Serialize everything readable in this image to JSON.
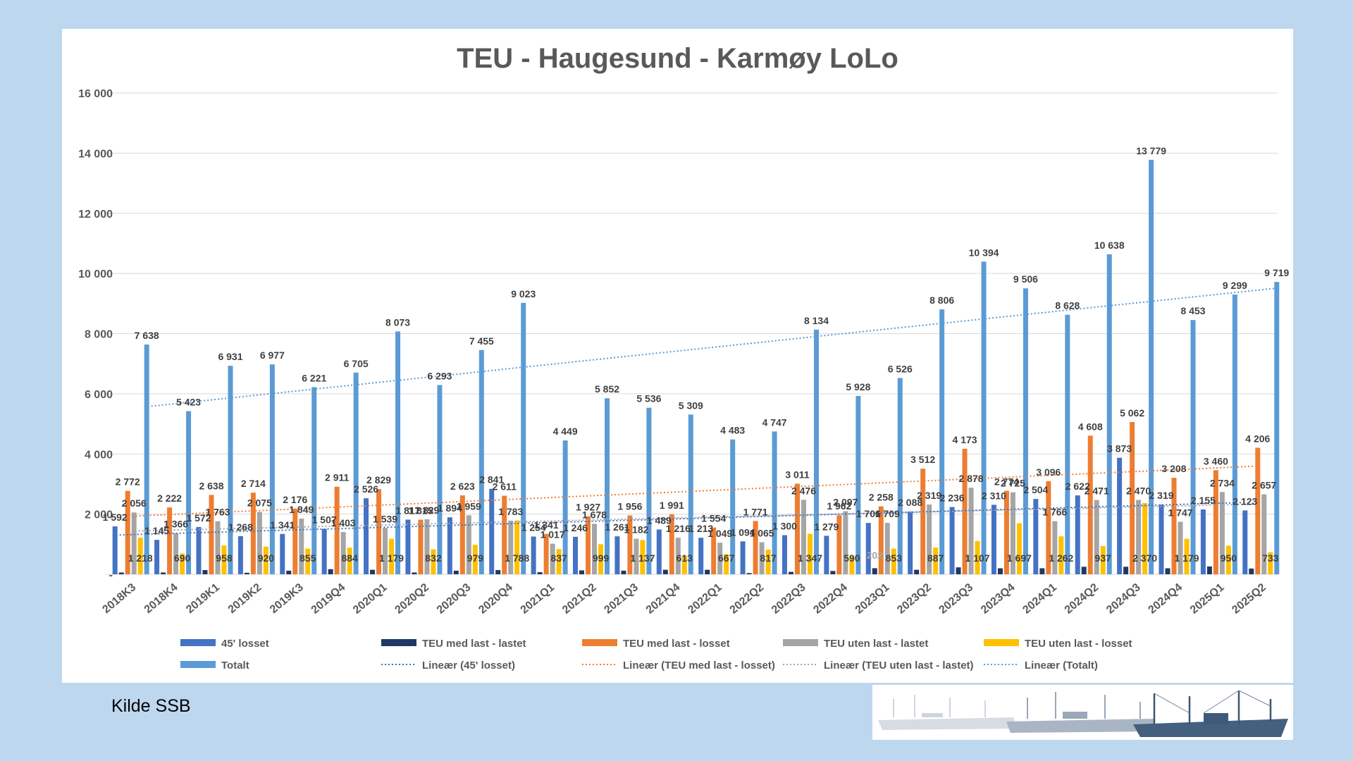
{
  "source": "Kilde SSB",
  "colors": {
    "background": "#bdd7ee",
    "panel": "#ffffff",
    "s45": "#4472c4",
    "teu_med_lastet": "#203864",
    "teu_med_losset": "#ed7d31",
    "teu_uten_lastet": "#a5a5a5",
    "teu_uten_losset": "#ffc000",
    "totalt": "#5b9bd5"
  },
  "chart_data": {
    "type": "bar",
    "title": "TEU - Haugesund - Karmøy LoLo",
    "ylim": [
      0,
      16000
    ],
    "y_ticks": [
      "-",
      "2 000",
      "4 000",
      "6 000",
      "8 000",
      "10 000",
      "12 000",
      "14 000",
      "16 000"
    ],
    "grid": true,
    "legend_position": "bottom",
    "categories": [
      "2018K3",
      "2018K4",
      "2019K1",
      "2019K2",
      "2019K3",
      "2019Q4",
      "2020Q1",
      "2020Q2",
      "2020Q3",
      "2020Q4",
      "2021Q1",
      "2021Q2",
      "2021Q3",
      "2021Q4",
      "2022Q1",
      "2022Q2",
      "2022Q3",
      "2022Q4",
      "2023Q1",
      "2023Q2",
      "2023Q3",
      "2023Q4",
      "2024Q1",
      "2024Q2",
      "2024Q3",
      "2024Q4",
      "2025Q1",
      "2025Q2"
    ],
    "series": [
      {
        "name": "45' losset",
        "color": "#4472c4",
        "values": [
          1592,
          1145,
          1572,
          1268,
          1341,
          1507,
          2526,
          1817,
          1894,
          2841,
          1254,
          1246,
          1261,
          1489,
          1213,
          1094,
          1300,
          1279,
          1706,
          2088,
          2236,
          2310,
          2504,
          2622,
          3873,
          2319,
          2155,
          2123
        ]
      },
      {
        "name": "TEU med last - lastet",
        "color": "#203864",
        "values": [
          60,
          60,
          140,
          50,
          120,
          170,
          150,
          60,
          120,
          140,
          70,
          130,
          120,
          150,
          150,
          40,
          80,
          110,
          202,
          150,
          230,
          200,
          200,
          250,
          250,
          200,
          260,
          190
        ]
      },
      {
        "name": "TEU med last - losset",
        "color": "#ed7d31",
        "values": [
          2772,
          2222,
          2638,
          2714,
          2176,
          2911,
          2829,
          1815,
          2623,
          2611,
          1341,
          1927,
          1956,
          1991,
          1554,
          1771,
          3011,
          1962,
          2258,
          3512,
          4173,
          2774,
          3096,
          4608,
          5062,
          3208,
          3460,
          4206
        ]
      },
      {
        "name": "TEU uten last - lastet",
        "color": "#a5a5a5",
        "values": [
          2056,
          1366,
          1763,
          2075,
          1849,
          1403,
          1539,
          1829,
          1959,
          1783,
          1017,
          1678,
          1182,
          1216,
          1049,
          1065,
          2476,
          2097,
          1709,
          2319,
          2878,
          2725,
          1766,
          2471,
          2470,
          1747,
          2734,
          2657
        ]
      },
      {
        "name": "TEU uten last - losset",
        "color": "#ffc000",
        "values": [
          1218,
          690,
          958,
          920,
          855,
          884,
          1179,
          832,
          979,
          1788,
          837,
          999,
          1137,
          613,
          667,
          817,
          1347,
          590,
          853,
          887,
          1107,
          1697,
          1262,
          937,
          2370,
          1179,
          950,
          733
        ]
      },
      {
        "name": "Totalt",
        "color": "#5b9bd5",
        "values": [
          7638,
          5423,
          6931,
          6977,
          6221,
          6705,
          8073,
          6293,
          7455,
          9023,
          4449,
          5852,
          5536,
          5309,
          4483,
          4747,
          8134,
          5928,
          6526,
          8806,
          10394,
          9506,
          8628,
          10638,
          13779,
          8453,
          9299,
          9719
        ]
      }
    ],
    "data_labels": [
      [
        "1 592",
        "",
        "2 772",
        "2 056",
        "1 218",
        "7 638"
      ],
      [
        "1 145",
        "",
        "2 222",
        "1 366",
        "690",
        "5 423"
      ],
      [
        "1 572",
        "",
        "2 638",
        "1 763",
        "958",
        "6 931"
      ],
      [
        "1 268",
        "",
        "2 714",
        "2 075",
        "920",
        "6 977"
      ],
      [
        "1 341",
        "",
        "2 176",
        "1 849",
        "855",
        "6 221"
      ],
      [
        "1 507",
        "",
        "2 911",
        "1 403",
        "884",
        "6 705"
      ],
      [
        "2 526",
        "",
        "2 829",
        "1 539",
        "1 179",
        "8 073"
      ],
      [
        "1 817",
        "",
        "1 815",
        "1 829",
        "832",
        "6 293"
      ],
      [
        "1 894",
        "",
        "2 623",
        "1 959",
        "979",
        "7 455"
      ],
      [
        "2 841",
        "",
        "2 611",
        "1 783",
        "1 788",
        "9 023"
      ],
      [
        "1 254",
        "",
        "1 341",
        "1 017",
        "837",
        "4 449"
      ],
      [
        "1 246",
        "",
        "1 927",
        "1 678",
        "999",
        "5 852"
      ],
      [
        "1 261",
        "",
        "1 956",
        "1 182",
        "1 137",
        "5 536"
      ],
      [
        "1 489",
        "",
        "1 991",
        "1 216",
        "613",
        "5 309"
      ],
      [
        "1 213",
        "",
        "1 554",
        "1 049",
        "667",
        "4 483"
      ],
      [
        "1 094",
        "",
        "1 771",
        "1 065",
        "817",
        "4 747"
      ],
      [
        "1 300",
        "",
        "3 011",
        "2 476",
        "1 347",
        "8 134"
      ],
      [
        "1 279",
        "",
        "1 962",
        "2 097",
        "590",
        "5 928"
      ],
      [
        "1 706",
        "202",
        "2 258",
        "1 709",
        "853",
        "6 526"
      ],
      [
        "2 088",
        "",
        "3 512",
        "2 319",
        "887",
        "8 806"
      ],
      [
        "2 236",
        "",
        "4 173",
        "2 878",
        "1 107",
        "10 394"
      ],
      [
        "2 310",
        "",
        "2 774",
        "2 725",
        "1 697",
        "9 506"
      ],
      [
        "2 504",
        "",
        "3 096",
        "1 766",
        "1 262",
        "8 628"
      ],
      [
        "2 622",
        "",
        "4 608",
        "2 471",
        "937",
        "10 638"
      ],
      [
        "3 873",
        "",
        "5 062",
        "2 470",
        "2 370",
        "13 779"
      ],
      [
        "2 319",
        "",
        "3 208",
        "1 747",
        "1 179",
        "8 453"
      ],
      [
        "2 155",
        "",
        "3 460",
        "2 734",
        "950",
        "9 299"
      ],
      [
        "2 123",
        "",
        "4 206",
        "2 657",
        "733",
        "9 719"
      ]
    ],
    "trendlines": [
      {
        "name": "Lineær (45' losset)",
        "color": "#4472c4"
      },
      {
        "name": "Lineær (TEU med last - losset)",
        "color": "#ed7d31"
      },
      {
        "name": "Lineær (TEU uten last - lastet)",
        "color": "#a5a5a5"
      },
      {
        "name": "Lineær (Totalt)",
        "color": "#5b9bd5"
      }
    ]
  }
}
